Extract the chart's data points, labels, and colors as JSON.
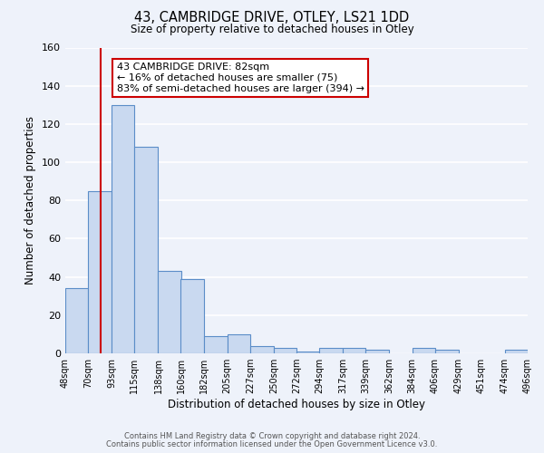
{
  "title_line1": "43, CAMBRIDGE DRIVE, OTLEY, LS21 1DD",
  "title_line2": "Size of property relative to detached houses in Otley",
  "xlabel": "Distribution of detached houses by size in Otley",
  "ylabel": "Number of detached properties",
  "bin_edges": [
    48,
    70,
    93,
    115,
    138,
    160,
    182,
    205,
    227,
    250,
    272,
    294,
    317,
    339,
    362,
    384,
    406,
    429,
    451,
    474,
    496
  ],
  "bar_heights": [
    34,
    85,
    130,
    108,
    43,
    39,
    9,
    10,
    4,
    3,
    1,
    3,
    3,
    2,
    0,
    3,
    2,
    0,
    0,
    2
  ],
  "bar_facecolor": "#c9d9f0",
  "bar_edgecolor": "#5b8dc8",
  "ylim": [
    0,
    160
  ],
  "yticks": [
    0,
    20,
    40,
    60,
    80,
    100,
    120,
    140,
    160
  ],
  "property_size": 82,
  "red_line_color": "#cc0000",
  "annotation_box_text": "43 CAMBRIDGE DRIVE: 82sqm\n← 16% of detached houses are smaller (75)\n83% of semi-detached houses are larger (394) →",
  "annotation_box_edgecolor": "#cc0000",
  "annotation_box_facecolor": "#ffffff",
  "footer_line1": "Contains HM Land Registry data © Crown copyright and database right 2024.",
  "footer_line2": "Contains public sector information licensed under the Open Government Licence v3.0.",
  "background_color": "#eef2fa",
  "plot_background_color": "#eef2fa",
  "grid_color": "#ffffff",
  "tick_labels": [
    "48sqm",
    "70sqm",
    "93sqm",
    "115sqm",
    "138sqm",
    "160sqm",
    "182sqm",
    "205sqm",
    "227sqm",
    "250sqm",
    "272sqm",
    "294sqm",
    "317sqm",
    "339sqm",
    "362sqm",
    "384sqm",
    "406sqm",
    "429sqm",
    "451sqm",
    "474sqm",
    "496sqm"
  ]
}
